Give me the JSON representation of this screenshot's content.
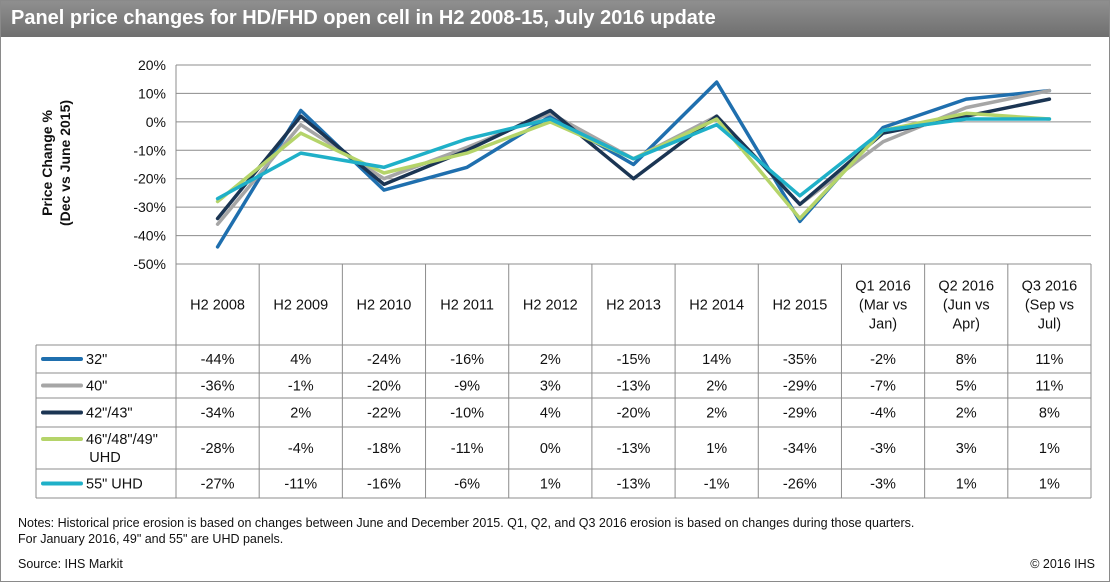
{
  "title": "Panel price changes for HD/FHD open cell in H2 2008-15, July 2016 update",
  "chart_data": {
    "type": "line",
    "ylabel_line1": "Price Change %",
    "ylabel_line2": "(Dec vs June 2015)",
    "ylim": [
      -50,
      20
    ],
    "yticks": [
      20,
      10,
      0,
      -10,
      -20,
      -30,
      -40,
      -50
    ],
    "ytick_labels": [
      "20%",
      "10%",
      "0%",
      "-10%",
      "-20%",
      "-30%",
      "-40%",
      "-50%"
    ],
    "grid": true,
    "categories": [
      [
        "H2 2008"
      ],
      [
        "H2 2009"
      ],
      [
        "H2 2010"
      ],
      [
        "H2 2011"
      ],
      [
        "H2 2012"
      ],
      [
        "H2 2013"
      ],
      [
        "H2 2014"
      ],
      [
        "H2 2015"
      ],
      [
        "Q1 2016",
        "(Mar vs",
        "Jan)"
      ],
      [
        "Q2 2016",
        "(Jun vs",
        "Apr)"
      ],
      [
        "Q3 2016",
        "(Sep vs",
        "Jul)"
      ]
    ],
    "series": [
      {
        "name": [
          "32\""
        ],
        "color": "#1f6fae",
        "values": [
          -44,
          4,
          -24,
          -16,
          2,
          -15,
          14,
          -35,
          -2,
          8,
          11
        ]
      },
      {
        "name": [
          "40\""
        ],
        "color": "#a6a6a6",
        "values": [
          -36,
          -1,
          -20,
          -9,
          3,
          -13,
          2,
          -29,
          -7,
          5,
          11
        ]
      },
      {
        "name": [
          "42\"/43\""
        ],
        "color": "#1b3553",
        "values": [
          -34,
          2,
          -22,
          -10,
          4,
          -20,
          2,
          -29,
          -4,
          2,
          8
        ]
      },
      {
        "name": [
          "46\"/48\"/49\"",
          "UHD"
        ],
        "color": "#b5d46a",
        "values": [
          -28,
          -4,
          -18,
          -11,
          0,
          -13,
          1,
          -34,
          -3,
          3,
          1
        ]
      },
      {
        "name": [
          "55\" UHD"
        ],
        "color": "#1fb0c8",
        "values": [
          -27,
          -11,
          -16,
          -6,
          1,
          -13,
          -1,
          -26,
          -3,
          1,
          1
        ]
      }
    ]
  },
  "notes_line1": "Notes: Historical price erosion is based on changes between June and December 2015. Q1, Q2, and Q3 2016 erosion is based on changes during those quarters.",
  "notes_line2": "For January 2016, 49\" and 55\" are UHD panels.",
  "source": "Source: IHS Markit",
  "copyright": "© 2016 IHS"
}
